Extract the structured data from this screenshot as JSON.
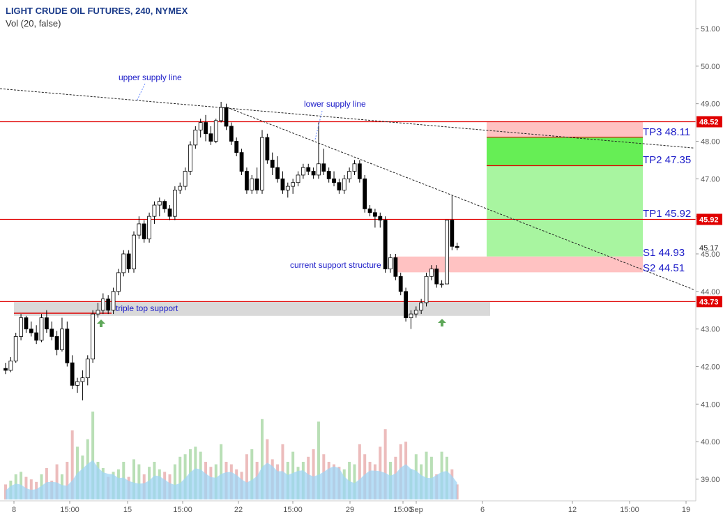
{
  "header": {
    "title": "LIGHT CRUDE OIL FUTURES, 240, NYMEX",
    "indicator": "Vol (20, false)"
  },
  "colors": {
    "up_candle": "#ffffff",
    "down_candle": "#000000",
    "candle_outline": "#000000",
    "resistance_line": "#e00000",
    "annotation_text": "#1b1bc8",
    "target_zone": "#a8f5a0",
    "target_zone_dark": "#66ee55",
    "stop_zone": "#ffc2c2",
    "support_zone_gray": "#d9d9d9",
    "vol_up": "#b9dfb6",
    "vol_down": "#ecbcbc",
    "vol_ma_fill": "#9fd4f4",
    "arrow": "#5fa85a",
    "price_label_bg": "#e00000"
  },
  "chart_data": {
    "type": "candlestick",
    "symbol": "LIGHT CRUDE OIL FUTURES",
    "interval": "240",
    "exchange": "NYMEX",
    "y_axis": {
      "range": [
        38.4,
        51.4
      ],
      "ticks": [
        "51.00",
        "50.00",
        "49.00",
        "48.00",
        "47.00",
        "46.00",
        "45.00",
        "44.00",
        "43.00",
        "42.00",
        "41.00",
        "40.00",
        "39.00"
      ]
    },
    "x_axis": {
      "tick_labels": [
        "8",
        "15:00",
        "15",
        "15:00",
        "22",
        "15:00",
        "29",
        "15:00",
        "Sep",
        "6",
        "12",
        "15:00",
        "19"
      ]
    },
    "price_labels": {
      "top_highlight": "48.52",
      "current": "45.17",
      "mid_highlight": "45.92",
      "bottom_highlight": "43.73"
    },
    "horizontal_levels": [
      48.52,
      45.92,
      43.73,
      43.42
    ],
    "targets": [
      {
        "label": "TP3 48.11",
        "price": 48.11
      },
      {
        "label": "TP2 47.35",
        "price": 47.35
      },
      {
        "label": "TP1 45.92",
        "price": 45.92
      }
    ],
    "stops": [
      {
        "label": "S1 44.93",
        "price": 44.93
      },
      {
        "label": "S2 44.51",
        "price": 44.51
      }
    ],
    "annotations": [
      {
        "text": "upper supply line"
      },
      {
        "text": "lower supply line"
      },
      {
        "text": "current support structure"
      },
      {
        "text": "triple top support"
      }
    ],
    "candles": [
      {
        "o": 41.95,
        "h": 42.1,
        "l": 41.8,
        "c": 41.9
      },
      {
        "o": 41.9,
        "h": 42.25,
        "l": 41.85,
        "c": 42.15
      },
      {
        "o": 42.15,
        "h": 42.9,
        "l": 42.1,
        "c": 42.8
      },
      {
        "o": 42.8,
        "h": 43.4,
        "l": 42.7,
        "c": 43.3
      },
      {
        "o": 43.3,
        "h": 43.35,
        "l": 42.9,
        "c": 43.0
      },
      {
        "o": 43.0,
        "h": 43.2,
        "l": 42.8,
        "c": 42.9
      },
      {
        "o": 42.9,
        "h": 43.1,
        "l": 42.6,
        "c": 42.7
      },
      {
        "o": 42.7,
        "h": 43.4,
        "l": 42.65,
        "c": 43.3
      },
      {
        "o": 43.3,
        "h": 43.5,
        "l": 42.9,
        "c": 43.0
      },
      {
        "o": 43.0,
        "h": 43.2,
        "l": 42.7,
        "c": 42.8
      },
      {
        "o": 42.8,
        "h": 42.95,
        "l": 42.3,
        "c": 42.45
      },
      {
        "o": 42.45,
        "h": 43.3,
        "l": 42.4,
        "c": 43.0
      },
      {
        "o": 43.0,
        "h": 43.2,
        "l": 42.0,
        "c": 42.1
      },
      {
        "o": 42.1,
        "h": 42.3,
        "l": 41.4,
        "c": 41.5
      },
      {
        "o": 41.5,
        "h": 41.7,
        "l": 41.3,
        "c": 41.6
      },
      {
        "o": 41.6,
        "h": 41.9,
        "l": 41.1,
        "c": 41.7
      },
      {
        "o": 41.7,
        "h": 42.3,
        "l": 41.5,
        "c": 42.2
      },
      {
        "o": 42.2,
        "h": 43.5,
        "l": 42.1,
        "c": 43.4
      },
      {
        "o": 43.4,
        "h": 43.7,
        "l": 43.3,
        "c": 43.5
      },
      {
        "o": 43.5,
        "h": 43.95,
        "l": 43.4,
        "c": 43.8
      },
      {
        "o": 43.8,
        "h": 43.9,
        "l": 43.4,
        "c": 43.5
      },
      {
        "o": 43.5,
        "h": 44.1,
        "l": 43.4,
        "c": 44.0
      },
      {
        "o": 44.0,
        "h": 44.6,
        "l": 43.9,
        "c": 44.5
      },
      {
        "o": 44.5,
        "h": 45.1,
        "l": 44.4,
        "c": 45.0
      },
      {
        "o": 45.0,
        "h": 45.1,
        "l": 44.5,
        "c": 44.6
      },
      {
        "o": 44.6,
        "h": 45.6,
        "l": 44.5,
        "c": 45.5
      },
      {
        "o": 45.5,
        "h": 46.0,
        "l": 45.4,
        "c": 45.8
      },
      {
        "o": 45.8,
        "h": 45.9,
        "l": 45.3,
        "c": 45.4
      },
      {
        "o": 45.4,
        "h": 46.1,
        "l": 45.3,
        "c": 46.0
      },
      {
        "o": 46.0,
        "h": 46.4,
        "l": 45.8,
        "c": 46.3
      },
      {
        "o": 46.3,
        "h": 46.5,
        "l": 46.0,
        "c": 46.4
      },
      {
        "o": 46.4,
        "h": 46.45,
        "l": 46.1,
        "c": 46.2
      },
      {
        "o": 46.2,
        "h": 46.3,
        "l": 45.9,
        "c": 46.0
      },
      {
        "o": 46.0,
        "h": 46.8,
        "l": 45.9,
        "c": 46.7
      },
      {
        "o": 46.7,
        "h": 46.9,
        "l": 46.6,
        "c": 46.8
      },
      {
        "o": 46.8,
        "h": 47.3,
        "l": 46.7,
        "c": 47.2
      },
      {
        "o": 47.2,
        "h": 48.0,
        "l": 47.1,
        "c": 47.9
      },
      {
        "o": 47.9,
        "h": 48.4,
        "l": 47.8,
        "c": 48.3
      },
      {
        "o": 48.3,
        "h": 48.6,
        "l": 48.1,
        "c": 48.5
      },
      {
        "o": 48.5,
        "h": 48.7,
        "l": 48.0,
        "c": 48.2
      },
      {
        "o": 48.2,
        "h": 48.4,
        "l": 47.9,
        "c": 48.0
      },
      {
        "o": 48.0,
        "h": 48.6,
        "l": 47.95,
        "c": 48.55
      },
      {
        "o": 48.55,
        "h": 49.05,
        "l": 48.5,
        "c": 48.9
      },
      {
        "o": 48.9,
        "h": 49.0,
        "l": 48.3,
        "c": 48.4
      },
      {
        "o": 48.4,
        "h": 48.5,
        "l": 47.9,
        "c": 48.0
      },
      {
        "o": 48.0,
        "h": 48.1,
        "l": 47.6,
        "c": 47.7
      },
      {
        "o": 47.7,
        "h": 47.8,
        "l": 47.1,
        "c": 47.2
      },
      {
        "o": 47.2,
        "h": 47.3,
        "l": 46.6,
        "c": 46.7
      },
      {
        "o": 46.7,
        "h": 47.1,
        "l": 46.6,
        "c": 47.0
      },
      {
        "o": 47.0,
        "h": 47.3,
        "l": 46.6,
        "c": 46.7
      },
      {
        "o": 46.7,
        "h": 48.3,
        "l": 46.6,
        "c": 48.1
      },
      {
        "o": 48.1,
        "h": 48.2,
        "l": 47.4,
        "c": 47.5
      },
      {
        "o": 47.5,
        "h": 47.7,
        "l": 47.1,
        "c": 47.3
      },
      {
        "o": 47.3,
        "h": 47.6,
        "l": 46.9,
        "c": 47.0
      },
      {
        "o": 47.0,
        "h": 47.2,
        "l": 46.6,
        "c": 46.7
      },
      {
        "o": 46.7,
        "h": 46.9,
        "l": 46.5,
        "c": 46.8
      },
      {
        "o": 46.8,
        "h": 47.0,
        "l": 46.6,
        "c": 46.9
      },
      {
        "o": 46.9,
        "h": 47.2,
        "l": 46.8,
        "c": 47.1
      },
      {
        "o": 47.1,
        "h": 47.4,
        "l": 47.0,
        "c": 47.3
      },
      {
        "o": 47.3,
        "h": 47.4,
        "l": 47.1,
        "c": 47.2
      },
      {
        "o": 47.2,
        "h": 47.3,
        "l": 47.0,
        "c": 47.1
      },
      {
        "o": 47.1,
        "h": 48.5,
        "l": 47.0,
        "c": 47.4
      },
      {
        "o": 47.4,
        "h": 47.8,
        "l": 47.1,
        "c": 47.2
      },
      {
        "o": 47.2,
        "h": 47.3,
        "l": 46.9,
        "c": 47.0
      },
      {
        "o": 47.0,
        "h": 47.2,
        "l": 46.8,
        "c": 46.9
      },
      {
        "o": 46.9,
        "h": 47.0,
        "l": 46.6,
        "c": 46.7
      },
      {
        "o": 46.7,
        "h": 47.1,
        "l": 46.6,
        "c": 47.0
      },
      {
        "o": 47.0,
        "h": 47.3,
        "l": 46.9,
        "c": 47.2
      },
      {
        "o": 47.2,
        "h": 47.5,
        "l": 47.1,
        "c": 47.4
      },
      {
        "o": 47.4,
        "h": 47.5,
        "l": 46.9,
        "c": 47.0
      },
      {
        "o": 47.0,
        "h": 47.1,
        "l": 46.1,
        "c": 46.2
      },
      {
        "o": 46.2,
        "h": 46.3,
        "l": 46.0,
        "c": 46.1
      },
      {
        "o": 46.1,
        "h": 46.2,
        "l": 45.7,
        "c": 46.0
      },
      {
        "o": 46.0,
        "h": 46.1,
        "l": 45.7,
        "c": 45.9
      },
      {
        "o": 45.9,
        "h": 46.0,
        "l": 44.5,
        "c": 44.6
      },
      {
        "o": 44.6,
        "h": 45.0,
        "l": 44.5,
        "c": 44.9
      },
      {
        "o": 44.9,
        "h": 45.0,
        "l": 44.3,
        "c": 44.4
      },
      {
        "o": 44.4,
        "h": 44.5,
        "l": 43.9,
        "c": 44.0
      },
      {
        "o": 44.0,
        "h": 44.1,
        "l": 43.2,
        "c": 43.3
      },
      {
        "o": 43.3,
        "h": 43.5,
        "l": 43.0,
        "c": 43.4
      },
      {
        "o": 43.4,
        "h": 43.6,
        "l": 43.3,
        "c": 43.5
      },
      {
        "o": 43.5,
        "h": 43.8,
        "l": 43.4,
        "c": 43.7
      },
      {
        "o": 43.7,
        "h": 44.5,
        "l": 43.6,
        "c": 44.4
      },
      {
        "o": 44.4,
        "h": 44.7,
        "l": 44.3,
        "c": 44.6
      },
      {
        "o": 44.6,
        "h": 44.7,
        "l": 44.1,
        "c": 44.2
      },
      {
        "o": 44.2,
        "h": 44.3,
        "l": 44.1,
        "c": 44.2
      },
      {
        "o": 44.2,
        "h": 45.9,
        "l": 44.2,
        "c": 45.9
      },
      {
        "o": 45.9,
        "h": 46.55,
        "l": 45.1,
        "c": 45.2
      },
      {
        "o": 45.2,
        "h": 45.3,
        "l": 45.1,
        "c": 45.17
      }
    ],
    "volume": [
      0.12,
      0.15,
      0.2,
      0.22,
      0.18,
      0.16,
      0.14,
      0.2,
      0.25,
      0.15,
      0.28,
      0.2,
      0.3,
      0.55,
      0.42,
      0.35,
      0.48,
      0.7,
      0.3,
      0.25,
      0.18,
      0.22,
      0.24,
      0.3,
      0.18,
      0.32,
      0.28,
      0.2,
      0.26,
      0.3,
      0.24,
      0.22,
      0.2,
      0.28,
      0.34,
      0.36,
      0.4,
      0.42,
      0.38,
      0.3,
      0.26,
      0.28,
      0.44,
      0.3,
      0.28,
      0.24,
      0.22,
      0.36,
      0.4,
      0.3,
      0.64,
      0.48,
      0.32,
      0.28,
      0.44,
      0.3,
      0.38,
      0.26,
      0.3,
      0.34,
      0.4,
      0.62,
      0.36,
      0.3,
      0.28,
      0.26,
      0.24,
      0.3,
      0.28,
      0.44,
      0.36,
      0.3,
      0.28,
      0.42,
      0.56,
      0.3,
      0.34,
      0.44,
      0.46,
      0.24,
      0.36,
      0.28,
      0.38,
      0.34,
      0.2,
      0.38,
      0.34,
      0.24,
      0.12
    ]
  }
}
